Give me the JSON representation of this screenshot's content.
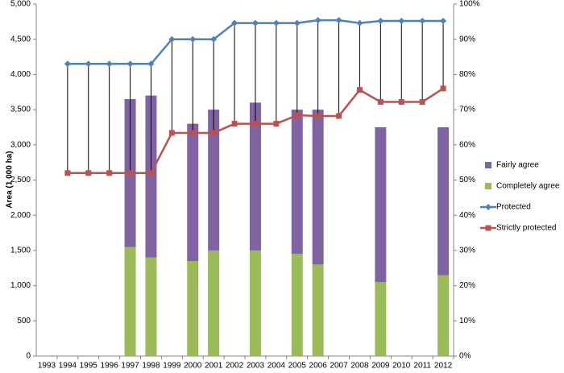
{
  "chart_data": {
    "type": "bar",
    "y_label": "Area (1 000 ha)",
    "categories": [
      "1993",
      "1994",
      "1995",
      "1996",
      "1997",
      "1998",
      "1999",
      "2000",
      "2001",
      "2002",
      "2003",
      "2004",
      "2005",
      "2006",
      "2007",
      "2008",
      "2009",
      "2010",
      "2011",
      "2012"
    ],
    "ylim": [
      0,
      5000
    ],
    "yticks": [
      0,
      500,
      {
        "value": 1000,
        "label": "1,000"
      },
      {
        "value": 1500,
        "label": "1,500"
      },
      {
        "value": 2000,
        "label": "2,000"
      },
      {
        "value": 2500,
        "label": "2,500"
      },
      {
        "value": 3000,
        "label": "3,000"
      },
      {
        "value": 3500,
        "label": "3,500"
      },
      {
        "value": 4000,
        "label": "4,000"
      },
      {
        "value": 4500,
        "label": "4,500"
      },
      {
        "value": 5000,
        "label": "5,000"
      }
    ],
    "y2lim": [
      0,
      100
    ],
    "y2ticks": [
      {
        "value": 0,
        "label": "0%"
      },
      {
        "value": 10,
        "label": "10%"
      },
      {
        "value": 20,
        "label": "20%"
      },
      {
        "value": 30,
        "label": "30%"
      },
      {
        "value": 40,
        "label": "40%"
      },
      {
        "value": 50,
        "label": "50%"
      },
      {
        "value": 60,
        "label": "60%"
      },
      {
        "value": 70,
        "label": "70%"
      },
      {
        "value": 80,
        "label": "80%"
      },
      {
        "value": 90,
        "label": "90%"
      },
      {
        "value": 100,
        "label": "100%"
      }
    ],
    "high_low_lines": true,
    "series": [
      {
        "name": "Fairly agree",
        "type": "bar",
        "axis": "y2",
        "color": "#8064a2",
        "values": [
          null,
          null,
          null,
          null,
          42,
          46,
          null,
          39,
          40,
          null,
          42,
          null,
          41,
          44,
          null,
          null,
          44,
          null,
          null,
          42
        ]
      },
      {
        "name": "Completely agree",
        "type": "bar",
        "axis": "y2",
        "color": "#9bbb59",
        "values": [
          null,
          null,
          null,
          null,
          31,
          28,
          null,
          27,
          30,
          null,
          30,
          null,
          29,
          26,
          null,
          null,
          21,
          null,
          null,
          23
        ]
      },
      {
        "name": "Protected",
        "type": "line",
        "marker": "diamond",
        "color": "#4f81bd",
        "values": [
          null,
          4150,
          4150,
          4150,
          4150,
          4150,
          4500,
          4500,
          4500,
          4730,
          4730,
          4730,
          4730,
          4770,
          4770,
          4730,
          4760,
          4760,
          4760,
          4760
        ]
      },
      {
        "name": "Strictly protected",
        "type": "line",
        "marker": "square",
        "color": "#c0504d",
        "values": [
          null,
          2600,
          2600,
          2600,
          2600,
          2600,
          3170,
          3170,
          3170,
          3300,
          3300,
          3300,
          3420,
          3410,
          3410,
          3780,
          3610,
          3610,
          3610,
          3800
        ]
      }
    ]
  }
}
